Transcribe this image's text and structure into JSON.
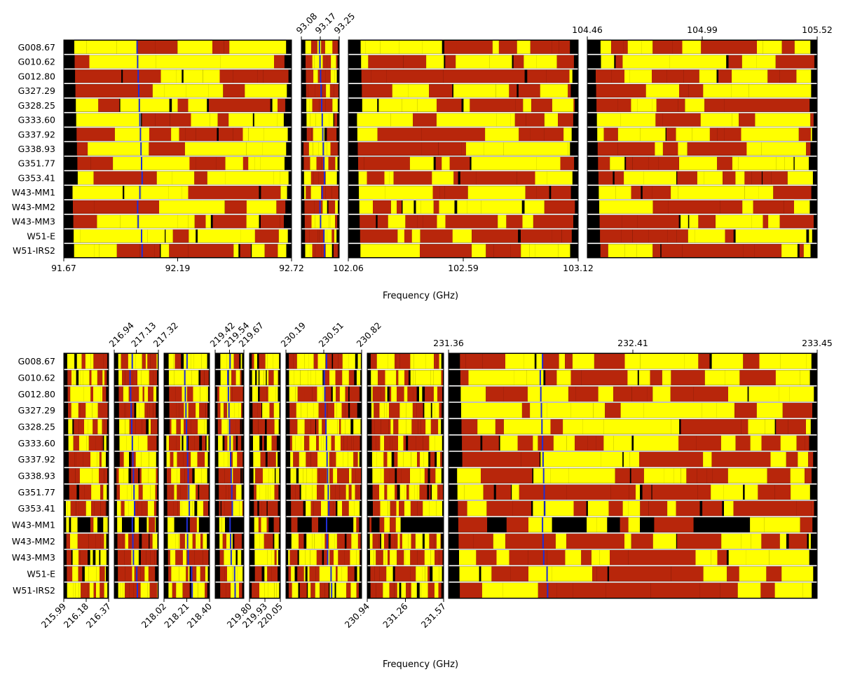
{
  "chart_data": {
    "type": "heatmap",
    "xlabel": "Frequency (GHz)",
    "sources": [
      "G008.67",
      "G010.62",
      "G012.80",
      "G327.29",
      "G328.25",
      "G333.60",
      "G337.92",
      "G338.93",
      "G351.77",
      "G353.41",
      "W43-MM1",
      "W43-MM2",
      "W43-MM3",
      "W51-E",
      "W51-IRS2"
    ],
    "colors": {
      "black": "#000000",
      "red": "#b8260b",
      "yellow": "#ffff00",
      "line": "#1f2ed6",
      "sep": "#ffffff"
    },
    "panels": [
      {
        "group": "top",
        "spw": [
          {
            "range": [
              91.67,
              92.72
            ],
            "bottom_ticks": [
              "91.67",
              "92.19",
              "92.72"
            ],
            "top_ticks": [],
            "line_freq": 92.02
          },
          {
            "range": [
              93.08,
              93.25
            ],
            "bottom_ticks": [],
            "top_ticks": [
              "93.08",
              "93.17",
              "93.25"
            ],
            "line_freq": 93.173
          },
          {
            "range": [
              102.06,
              103.12
            ],
            "bottom_ticks": [
              "102.06",
              "102.59",
              "103.12"
            ],
            "top_ticks": [],
            "line_freq": null
          },
          {
            "range": [
              104.46,
              105.52
            ],
            "bottom_ticks": [],
            "top_ticks": [
              "104.46",
              "104.99",
              "105.52"
            ],
            "line_freq": null
          }
        ]
      },
      {
        "group": "bottom",
        "spw": [
          {
            "range": [
              215.99,
              216.37
            ],
            "bottom_ticks": [
              "215.99",
              "216.18",
              "216.37"
            ],
            "top_ticks": [],
            "line_freq": null
          },
          {
            "range": [
              216.94,
              217.32
            ],
            "bottom_ticks": [],
            "top_ticks": [
              "216.94",
              "217.13",
              "217.32"
            ],
            "line_freq": 217.105
          },
          {
            "range": [
              218.02,
              218.4
            ],
            "bottom_ticks": [
              "218.02",
              "218.21",
              "218.40"
            ],
            "top_ticks": [],
            "line_freq": 218.222
          },
          {
            "range": [
              219.42,
              219.67
            ],
            "bottom_ticks": [],
            "top_ticks": [
              "219.42",
              "219.54",
              "219.67"
            ],
            "line_freq": 219.56
          },
          {
            "range": [
              219.8,
              220.05
            ],
            "bottom_ticks": [
              "219.80",
              "219.93",
              "220.05"
            ],
            "top_ticks": [],
            "line_freq": null
          },
          {
            "range": [
              230.19,
              230.82
            ],
            "bottom_ticks": [],
            "top_ticks": [
              "230.19",
              "230.51",
              "230.82"
            ],
            "line_freq": 230.538
          },
          {
            "range": [
              230.94,
              231.57
            ],
            "bottom_ticks": [
              "230.94",
              "231.26",
              "231.57"
            ],
            "top_ticks": [],
            "line_freq": null
          },
          {
            "range": [
              231.36,
              233.45
            ],
            "bottom_ticks": [],
            "top_ticks": [
              "231.36",
              "232.41",
              "233.45"
            ],
            "line_freq": 231.9
          }
        ]
      }
    ]
  }
}
